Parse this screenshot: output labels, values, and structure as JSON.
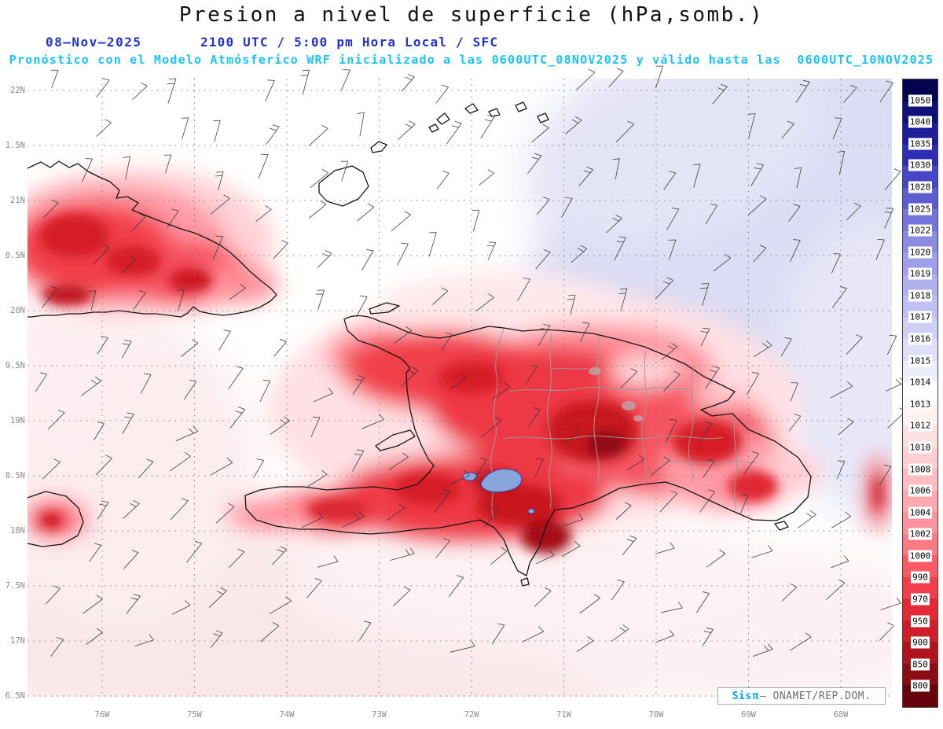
{
  "header": {
    "title": "Presion a nivel de superficie (hPa,somb.)",
    "date": "08–Nov–2025",
    "time_line": "2100 UTC / 5:00 pm Hora Local / SFC",
    "model_line": "Pronóstico con el Modelo Atmósferico WRF inicializado a las 0600UTC_08NOV2025 y válido hasta las  0600UTC_10NOV2025",
    "title_color": "#111111",
    "datetime_color": "#2233cc",
    "model_line_color": "#1bc3fa"
  },
  "map": {
    "lat_labels": [
      "22N",
      "1.5N",
      "21N",
      "0.5N",
      "20N",
      "9.5N",
      "19N",
      "8.5N",
      "18N",
      "7.5N",
      "17N",
      "6.5N"
    ],
    "lon_labels": [
      "76W",
      "75W",
      "74W",
      "73W",
      "72W",
      "71W",
      "70W",
      "69W",
      "68W"
    ],
    "label_color": "#8a8a8a",
    "palette": {
      "low_pressure_red": "#f2404c",
      "deep_low_red": "#8f0a12",
      "high_pressure_lavender": "#c3c3ec",
      "coastline": "#151515",
      "province_border": "#9a9a9a",
      "lake_blue": "#8aa4dc",
      "wind_barb": "#3a3a3a"
    }
  },
  "colorbar": {
    "labels": [
      "1050",
      "1040",
      "1035",
      "1030",
      "1028",
      "1025",
      "1022",
      "1020",
      "1019",
      "1018",
      "1017",
      "1016",
      "1015",
      "1014",
      "1013",
      "1012",
      "1010",
      "1008",
      "1006",
      "1004",
      "1002",
      "1000",
      "990",
      "970",
      "950",
      "900",
      "850",
      "800"
    ],
    "colors": [
      "#04044e",
      "#10107a",
      "#1d1d9b",
      "#2e2eb4",
      "#4646c6",
      "#5d5dd2",
      "#7575db",
      "#8c8ce3",
      "#9f9fe9",
      "#b0b0ee",
      "#c0c0f2",
      "#d0d0f5",
      "#dfdff8",
      "#ededfb",
      "#ffffff",
      "#fff2f3",
      "#ffe1e4",
      "#ffcfd4",
      "#ffbcc2",
      "#ffa8b0",
      "#ff929c",
      "#ff7a85",
      "#fb5a66",
      "#f23e4b",
      "#e42a37",
      "#cf1e2a",
      "#b0141e",
      "#8c0c14",
      "#67040b"
    ]
  },
  "watermark": {
    "brand": "Sis",
    "pi": "π",
    "org": "— ONAMET/REP.DOM.",
    "brand_color": "#00a7e0"
  }
}
